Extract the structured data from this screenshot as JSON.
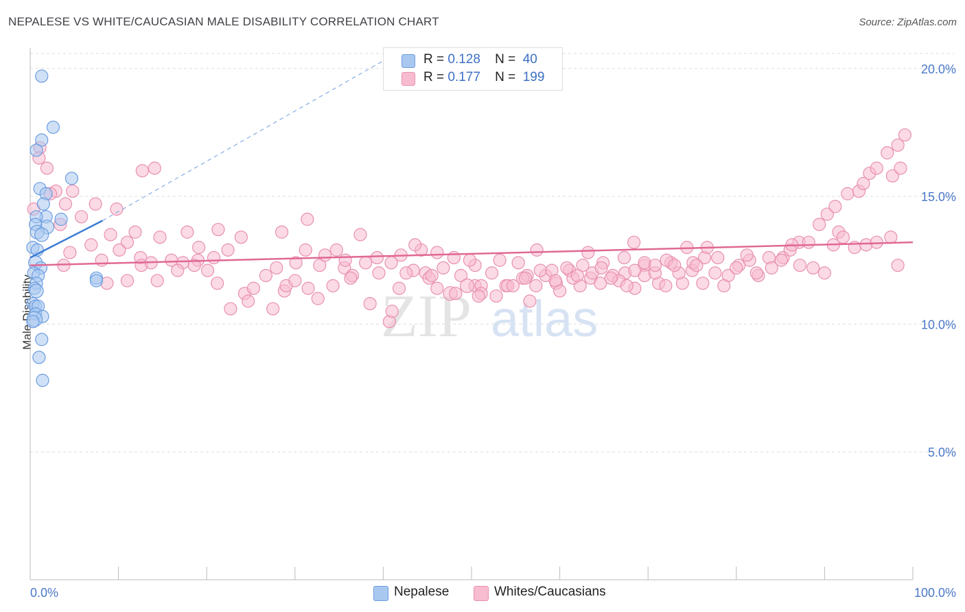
{
  "title": "NEPALESE VS WHITE/CAUCASIAN MALE DISABILITY CORRELATION CHART",
  "source": "Source: ZipAtlas.com",
  "watermark": {
    "zip": "ZIP",
    "atlas": "atlas"
  },
  "legend": {
    "r_label": "R =",
    "n_label": "N =",
    "series": [
      {
        "name": "Nepalese",
        "r": "0.128",
        "n": "40",
        "fill": "#a9c8f0",
        "stroke": "#6b9de0"
      },
      {
        "name": "Whites/Caucasians",
        "r": "0.177",
        "n": "199",
        "fill": "#f8bcd0",
        "stroke": "#e88fb0"
      }
    ]
  },
  "chart_data": {
    "type": "scatter",
    "title": "NEPALESE VS WHITE/CAUCASIAN MALE DISABILITY CORRELATION CHART",
    "xlabel": "",
    "ylabel": "Male Disability",
    "xlim": [
      0,
      100
    ],
    "ylim": [
      0,
      20.8
    ],
    "x_tick_labels": [
      "0.0%",
      "100.0%"
    ],
    "y_ticks": [
      5,
      10,
      15,
      20
    ],
    "y_tick_labels": [
      "5.0%",
      "10.0%",
      "15.0%",
      "20.0%"
    ],
    "grid": true,
    "series": [
      {
        "name": "Nepalese",
        "color": "#6b9de0",
        "fill": "#a9c8f0",
        "trend": {
          "x0": 0,
          "y0": 12.6,
          "x1": 8.2,
          "y1": 14.05,
          "dash_to_x": 40,
          "dash_to_y": 20.3,
          "color": "#3a7bd5"
        },
        "points": [
          [
            1.3,
            19.7,
            9
          ],
          [
            2.6,
            17.7,
            9
          ],
          [
            1.3,
            17.2,
            9
          ],
          [
            0.7,
            16.8,
            9
          ],
          [
            4.7,
            15.7,
            9
          ],
          [
            1.1,
            15.3,
            9
          ],
          [
            1.8,
            15.1,
            9
          ],
          [
            1.5,
            14.7,
            9
          ],
          [
            1.8,
            14.2,
            9
          ],
          [
            0.7,
            14.2,
            9
          ],
          [
            3.5,
            14.1,
            9
          ],
          [
            1.9,
            13.8,
            10
          ],
          [
            0.6,
            13.9,
            9
          ],
          [
            0.8,
            13.6,
            10
          ],
          [
            1.3,
            13.5,
            10
          ],
          [
            0.3,
            13.0,
            9
          ],
          [
            0.8,
            12.9,
            9
          ],
          [
            0.6,
            12.4,
            10
          ],
          [
            1.2,
            12.2,
            9
          ],
          [
            0.4,
            12.0,
            9
          ],
          [
            0.9,
            11.9,
            9
          ],
          [
            7.5,
            11.8,
            9
          ],
          [
            7.5,
            11.7,
            9
          ],
          [
            0.7,
            11.6,
            9
          ],
          [
            0.5,
            11.4,
            9
          ],
          [
            0.7,
            11.3,
            10
          ],
          [
            0.3,
            10.8,
            9
          ],
          [
            0.6,
            10.7,
            9
          ],
          [
            0.9,
            10.7,
            9
          ],
          [
            0.6,
            10.4,
            9
          ],
          [
            1.4,
            10.3,
            9
          ],
          [
            0.5,
            10.2,
            11
          ],
          [
            0.3,
            10.1,
            9
          ],
          [
            1.3,
            9.4,
            9
          ],
          [
            1.0,
            8.7,
            9
          ],
          [
            1.4,
            7.8,
            9
          ]
        ]
      },
      {
        "name": "Whites/Caucasians",
        "color": "#e88fb0",
        "fill": "#f8bcd0",
        "trend": {
          "x0": 0,
          "y0": 12.3,
          "x1": 100,
          "y1": 13.2,
          "color": "#e06894"
        },
        "points": [
          [
            1.1,
            16.9,
            9
          ],
          [
            1.0,
            16.5,
            9
          ],
          [
            1.9,
            16.1,
            9
          ],
          [
            12.7,
            16.0,
            9
          ],
          [
            14.1,
            16.1,
            9
          ],
          [
            2.9,
            15.2,
            9
          ],
          [
            4.8,
            15.2,
            9
          ],
          [
            2.3,
            15.1,
            9
          ],
          [
            4.0,
            14.7,
            9
          ],
          [
            7.4,
            14.7,
            9
          ],
          [
            9.8,
            14.5,
            9
          ],
          [
            0.4,
            14.5,
            9
          ],
          [
            5.8,
            14.2,
            9
          ],
          [
            3.4,
            13.9,
            9
          ],
          [
            9.1,
            13.5,
            9
          ],
          [
            11.9,
            13.6,
            9
          ],
          [
            14.7,
            13.4,
            9
          ],
          [
            17.8,
            13.6,
            9
          ],
          [
            21.3,
            13.7,
            9
          ],
          [
            23.9,
            13.4,
            9
          ],
          [
            31.4,
            14.1,
            9
          ],
          [
            28.5,
            13.6,
            9
          ],
          [
            19.1,
            13.0,
            9
          ],
          [
            22.4,
            12.9,
            9
          ],
          [
            11.0,
            13.2,
            9
          ],
          [
            12.5,
            12.6,
            9
          ],
          [
            10.1,
            12.9,
            9
          ],
          [
            6.9,
            13.1,
            9
          ],
          [
            4.5,
            12.8,
            9
          ],
          [
            8.1,
            12.5,
            9
          ],
          [
            3.8,
            12.3,
            9
          ],
          [
            12.6,
            12.3,
            9
          ],
          [
            13.7,
            12.4,
            9
          ],
          [
            16.0,
            12.5,
            9
          ],
          [
            17.3,
            12.4,
            9
          ],
          [
            19.0,
            12.5,
            9
          ],
          [
            20.8,
            12.6,
            9
          ],
          [
            14.4,
            11.7,
            9
          ],
          [
            11.0,
            11.7,
            9
          ],
          [
            8.7,
            11.6,
            9
          ],
          [
            16.7,
            12.1,
            9
          ],
          [
            18.6,
            12.3,
            9
          ],
          [
            20.1,
            12.1,
            9
          ],
          [
            21.2,
            11.6,
            9
          ],
          [
            24.3,
            11.2,
            9
          ],
          [
            22.7,
            10.6,
            9
          ],
          [
            25.3,
            11.4,
            9
          ],
          [
            24.7,
            10.9,
            9
          ],
          [
            27.5,
            10.6,
            9
          ],
          [
            28.8,
            11.3,
            9
          ],
          [
            30.1,
            12.4,
            9
          ],
          [
            31.5,
            11.4,
            9
          ],
          [
            32.8,
            12.3,
            9
          ],
          [
            34.3,
            11.5,
            9
          ],
          [
            35.6,
            12.2,
            9
          ],
          [
            36.5,
            11.9,
            9
          ],
          [
            38.0,
            12.4,
            9
          ],
          [
            39.5,
            12.0,
            9
          ],
          [
            40.9,
            12.4,
            9
          ],
          [
            41.8,
            11.4,
            9
          ],
          [
            43.4,
            12.1,
            9
          ],
          [
            44.8,
            12.0,
            9
          ],
          [
            46.1,
            11.4,
            9
          ],
          [
            47.6,
            11.2,
            10
          ],
          [
            48.8,
            11.9,
            9
          ],
          [
            50.4,
            11.5,
            9
          ],
          [
            51.1,
            11.5,
            9
          ],
          [
            52.3,
            12.0,
            9
          ],
          [
            53.9,
            11.5,
            9
          ],
          [
            55.3,
            12.4,
            9
          ],
          [
            56.3,
            11.9,
            9
          ],
          [
            57.3,
            11.5,
            9
          ],
          [
            58.4,
            11.9,
            9
          ],
          [
            59.6,
            11.6,
            9
          ],
          [
            61.1,
            12.1,
            9
          ],
          [
            62.3,
            11.5,
            9
          ],
          [
            63.5,
            11.8,
            9
          ],
          [
            64.6,
            11.6,
            9
          ],
          [
            66.0,
            11.9,
            9
          ],
          [
            67.4,
            12.0,
            9
          ],
          [
            68.5,
            11.4,
            9
          ],
          [
            69.6,
            12.3,
            9
          ],
          [
            71.2,
            11.6,
            9
          ],
          [
            72.6,
            12.4,
            9
          ],
          [
            73.9,
            11.6,
            9
          ],
          [
            75.0,
            12.1,
            9
          ],
          [
            76.4,
            12.6,
            9
          ],
          [
            77.9,
            12.6,
            9
          ],
          [
            79.1,
            11.9,
            9
          ],
          [
            80.3,
            12.3,
            9
          ],
          [
            81.5,
            12.5,
            9
          ],
          [
            82.5,
            11.9,
            9
          ],
          [
            83.7,
            12.6,
            9
          ],
          [
            85.3,
            12.6,
            9
          ],
          [
            86.1,
            12.9,
            9
          ],
          [
            87.1,
            13.2,
            9
          ],
          [
            88.2,
            13.2,
            9
          ],
          [
            89.4,
            13.9,
            9
          ],
          [
            90.3,
            14.3,
            9
          ],
          [
            91.2,
            14.6,
            9
          ],
          [
            91.6,
            13.6,
            9
          ],
          [
            92.6,
            15.1,
            9
          ],
          [
            93.9,
            15.2,
            9
          ],
          [
            94.4,
            15.5,
            9
          ],
          [
            95.1,
            15.9,
            9
          ],
          [
            95.9,
            16.1,
            9
          ],
          [
            97.1,
            16.7,
            9
          ],
          [
            98.3,
            17.0,
            9
          ],
          [
            99.1,
            17.4,
            9
          ],
          [
            97.7,
            15.8,
            9
          ],
          [
            98.6,
            16.1,
            9
          ],
          [
            33.4,
            12.7,
            9
          ],
          [
            35.7,
            12.5,
            9
          ],
          [
            37.4,
            13.5,
            9
          ],
          [
            38.5,
            10.8,
            9
          ],
          [
            40.7,
            10.1,
            9
          ],
          [
            41.0,
            10.5,
            9
          ],
          [
            42.6,
            12.0,
            9
          ],
          [
            44.3,
            12.9,
            9
          ],
          [
            45.2,
            11.8,
            9
          ],
          [
            46.1,
            12.8,
            9
          ],
          [
            48.0,
            12.6,
            9
          ],
          [
            49.5,
            11.5,
            10
          ],
          [
            50.4,
            12.3,
            9
          ],
          [
            51.1,
            11.2,
            9
          ],
          [
            52.8,
            11.1,
            9
          ],
          [
            54.1,
            11.5,
            9
          ],
          [
            55.8,
            11.8,
            9
          ],
          [
            56.6,
            10.9,
            9
          ],
          [
            57.8,
            12.1,
            9
          ],
          [
            59.1,
            12.1,
            9
          ],
          [
            60.0,
            11.3,
            9
          ],
          [
            61.5,
            11.8,
            9
          ],
          [
            62.6,
            12.3,
            9
          ],
          [
            63.7,
            12.0,
            9
          ],
          [
            64.9,
            12.4,
            9
          ],
          [
            66.7,
            11.7,
            9
          ],
          [
            67.6,
            11.5,
            9
          ],
          [
            68.4,
            13.2,
            9
          ],
          [
            69.6,
            11.9,
            9
          ],
          [
            70.8,
            12.0,
            9
          ],
          [
            72.0,
            11.5,
            9
          ],
          [
            73.5,
            12.0,
            9
          ],
          [
            75.1,
            12.4,
            9
          ],
          [
            76.2,
            11.6,
            9
          ],
          [
            77.6,
            12.0,
            9
          ],
          [
            78.6,
            11.5,
            9
          ],
          [
            80.0,
            12.2,
            9
          ],
          [
            81.2,
            12.7,
            9
          ],
          [
            82.3,
            12.0,
            9
          ],
          [
            84.0,
            12.2,
            9
          ],
          [
            85.1,
            12.5,
            9
          ],
          [
            86.3,
            13.1,
            9
          ],
          [
            87.2,
            12.3,
            9
          ],
          [
            88.7,
            12.2,
            9
          ],
          [
            90.0,
            12.0,
            9
          ],
          [
            91.0,
            13.1,
            9
          ],
          [
            92.1,
            13.4,
            9
          ],
          [
            93.4,
            13.0,
            9
          ],
          [
            94.7,
            13.1,
            9
          ],
          [
            95.9,
            13.2,
            9
          ],
          [
            97.5,
            13.4,
            9
          ],
          [
            98.3,
            12.3,
            9
          ],
          [
            26.7,
            11.9,
            9
          ],
          [
            27.9,
            12.2,
            9
          ],
          [
            29.0,
            11.5,
            9
          ],
          [
            30.0,
            11.7,
            9
          ],
          [
            31.2,
            12.9,
            9
          ],
          [
            32.6,
            11.0,
            9
          ],
          [
            34.7,
            12.9,
            9
          ],
          [
            36.3,
            11.8,
            9
          ],
          [
            39.3,
            12.6,
            9
          ],
          [
            42.0,
            12.7,
            9
          ],
          [
            43.6,
            13.1,
            9
          ],
          [
            45.5,
            11.9,
            9
          ],
          [
            46.8,
            12.2,
            9
          ],
          [
            48.2,
            11.2,
            9
          ],
          [
            49.8,
            12.5,
            9
          ],
          [
            50.8,
            11.1,
            9
          ],
          [
            53.2,
            12.5,
            9
          ],
          [
            54.7,
            11.5,
            9
          ],
          [
            56.1,
            11.8,
            9
          ],
          [
            57.4,
            12.9,
            9
          ],
          [
            59.5,
            11.7,
            9
          ],
          [
            60.8,
            12.2,
            9
          ],
          [
            62.0,
            11.9,
            9
          ],
          [
            63.2,
            12.8,
            9
          ],
          [
            64.7,
            12.2,
            9
          ],
          [
            65.8,
            11.8,
            9
          ],
          [
            67.3,
            12.6,
            9
          ],
          [
            68.5,
            12.1,
            9
          ],
          [
            69.6,
            12.4,
            9
          ],
          [
            70.8,
            12.3,
            9
          ],
          [
            72.1,
            12.5,
            9
          ],
          [
            73.0,
            12.3,
            9
          ],
          [
            74.4,
            13.0,
            9
          ],
          [
            75.5,
            12.3,
            9
          ],
          [
            76.7,
            13.0,
            9
          ]
        ]
      }
    ]
  },
  "x_tick_labels": {
    "left": "0.0%",
    "right": "100.0%"
  },
  "y_axis_label": "Male Disability"
}
